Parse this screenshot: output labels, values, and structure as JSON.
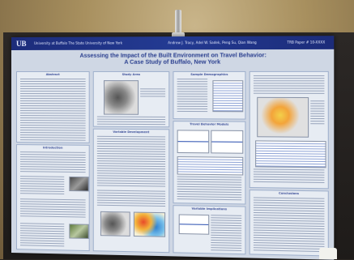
{
  "poster": {
    "logo": "UB",
    "university": "University at Buffalo  The State University of New York",
    "authors": "Andrew J. Tracy, Adel W. Sadek, Peng Su, Qian Wang",
    "paper": "TRB Paper # 10-XXXX",
    "title_line1": "Assessing the Impact of the Built Environment on Travel Behavior:",
    "title_line2": "A Case Study of Buffalo, New York",
    "sections": {
      "abstract": "Abstract",
      "introduction": "Introduction",
      "study_area": "Study Area",
      "variable_development": "Variable Development",
      "sample_demographics": "Sample Demographics",
      "travel_behavior_models": "Travel Behavior Models",
      "variable_implications": "Variable Implications",
      "conclusions": "Conclusions"
    }
  },
  "colors": {
    "banner": "#1c2c7a",
    "title": "#2a3f8f",
    "poster_bg": "#cfd7e4"
  }
}
